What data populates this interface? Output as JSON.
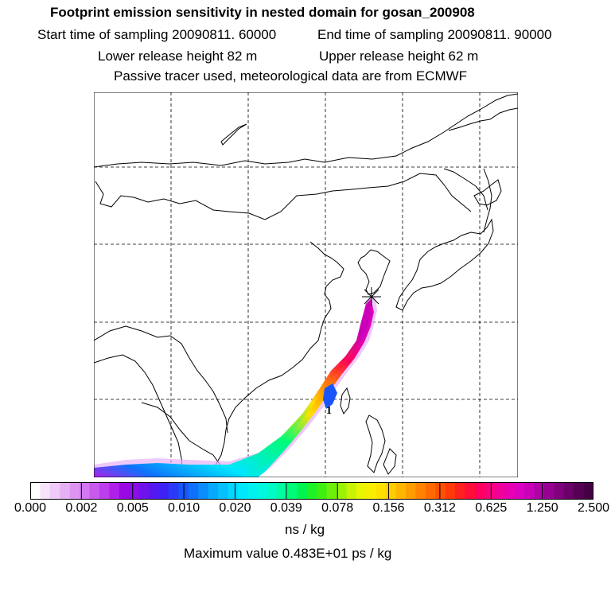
{
  "header": {
    "title": "Footprint emission sensitivity in nested domain for gosan_200908",
    "start_label": "Start time of sampling 20090811. 60000",
    "end_label": "End time of sampling 20090811. 90000",
    "lower_label": "Lower release height   82 m",
    "upper_label": "Upper release height   62 m",
    "info_label": "Passive tracer used, meteorological data are from ECMWF"
  },
  "map": {
    "site_marker": "star-icon",
    "plume_label": "1"
  },
  "colorbar": {
    "units": "ns / kg",
    "ticks": [
      "0.000",
      "0.002",
      "0.005",
      "0.010",
      "0.020",
      "0.039",
      "0.078",
      "0.156",
      "0.312",
      "0.625",
      "1.250",
      "2.500"
    ],
    "colors": [
      "#ffffff",
      "#f6e2fb",
      "#eecbf8",
      "#e6b0f5",
      "#de95f2",
      "#d278f0",
      "#c85aee",
      "#bd3eec",
      "#b020ea",
      "#9a08e6",
      "#8a0ee8",
      "#6f12ec",
      "#5418f0",
      "#3c22f4",
      "#2a3af8",
      "#1a55fa",
      "#1070fb",
      "#0a8cfc",
      "#08a8fd",
      "#06c0fe",
      "#04d6ff",
      "#00e6ff",
      "#00f0f0",
      "#00f8e0",
      "#00fbc4",
      "#00fc9e",
      "#00fb78",
      "#00f450",
      "#1cf226",
      "#3ef012",
      "#6cf00a",
      "#9cf206",
      "#c6f404",
      "#e8f402",
      "#f8ee00",
      "#ffe000",
      "#ffcc00",
      "#ffb600",
      "#ff9c00",
      "#ff8200",
      "#ff6a00",
      "#ff5000",
      "#ff3a0a",
      "#ff2020",
      "#ff0e3a",
      "#ff0060",
      "#fa0080",
      "#f2009a",
      "#e800b0",
      "#dc00c0",
      "#c800b8",
      "#b000a8",
      "#980092",
      "#80007c",
      "#6a0068",
      "#560054",
      "#440044"
    ]
  },
  "footer": {
    "max_value": "Maximum value  0.483E+01 ps / kg"
  }
}
